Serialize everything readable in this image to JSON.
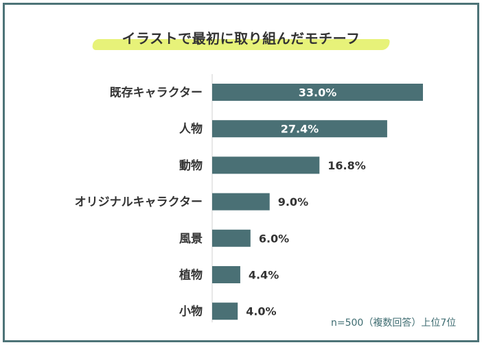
{
  "title": "イラストで最初に取り組んだモチーフ",
  "footnote": "n=500（複数回答）上位7位",
  "colors": {
    "frame": "#4d7377",
    "bar": "#4a7075",
    "highlight": "#e7f279",
    "label": "#333333",
    "value_inside": "#ffffff"
  },
  "chart_data": {
    "type": "bar",
    "orientation": "horizontal",
    "categories": [
      "既存キャラクター",
      "人物",
      "動物",
      "オリジナルキャラクター",
      "風景",
      "植物",
      "小物"
    ],
    "values": [
      33.0,
      27.4,
      16.8,
      9.0,
      6.0,
      4.4,
      4.0
    ],
    "value_labels": [
      "33.0%",
      "27.4%",
      "16.8%",
      "9.0%",
      "6.0%",
      "4.4%",
      "4.0%"
    ],
    "unit": "%",
    "xlim": [
      0,
      33.0
    ],
    "grid": false,
    "legend": "none"
  }
}
